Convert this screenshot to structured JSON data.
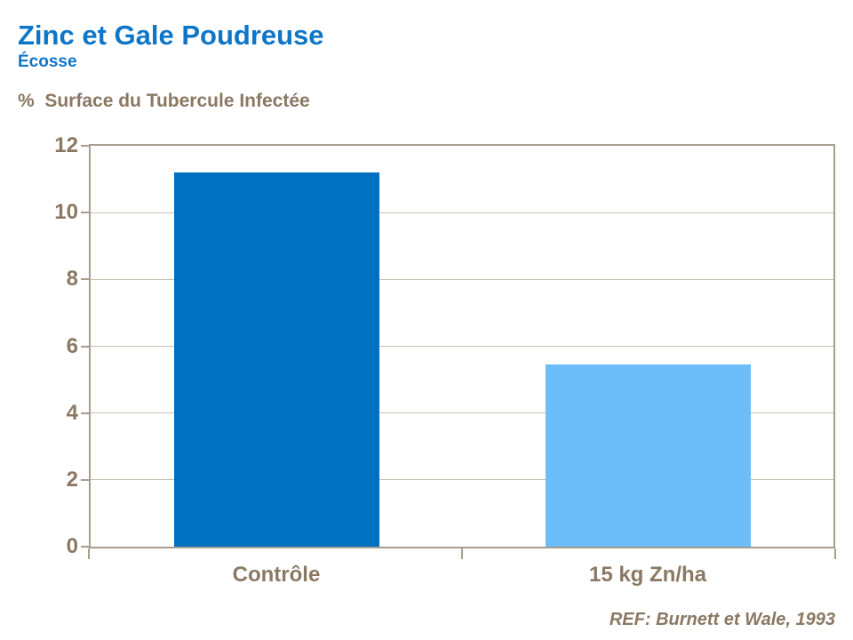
{
  "title": "Zinc et Gale Poudreuse",
  "subtitle": "Écosse",
  "y_axis_title": "%  Surface du Tubercule Infectée",
  "reference": "REF: Burnett et Wale, 1993",
  "colors": {
    "title_blue": "#0e76c8",
    "text_brown": "#8a7862",
    "axis_border": "#a89e90",
    "gridline": "#c8beae",
    "bar_control": "#0070c1",
    "bar_zinc": "#6bbef9"
  },
  "chart_data": {
    "type": "bar",
    "title": "Zinc et Gale Poudreuse",
    "subtitle": "Écosse",
    "ylabel": "% Surface du Tubercule Infectée",
    "categories": [
      "Contrôle",
      "15 kg Zn/ha"
    ],
    "values": [
      11.2,
      5.45
    ],
    "bar_colors": [
      "#0070c1",
      "#6bbef9"
    ],
    "ylim": [
      0,
      12
    ],
    "yticks": [
      0,
      2,
      4,
      6,
      8,
      10,
      12
    ],
    "grid": true,
    "legend": false,
    "annotation": "REF: Burnett et Wale, 1993"
  }
}
